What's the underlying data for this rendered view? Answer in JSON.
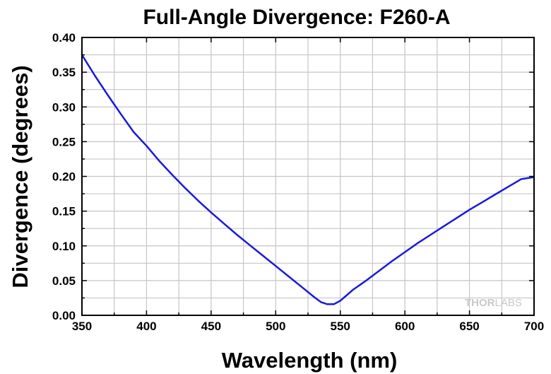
{
  "chart_data": {
    "type": "line",
    "title": "Full-Angle Divergence: F260-A",
    "xlabel": "Wavelength (nm)",
    "ylabel": "Divergence (degrees)",
    "xlim": [
      350,
      700
    ],
    "ylim": [
      0,
      0.4
    ],
    "xticks": [
      "350",
      "400",
      "450",
      "500",
      "550",
      "600",
      "650",
      "700"
    ],
    "yticks": [
      "0.00",
      "0.05",
      "0.10",
      "0.15",
      "0.20",
      "0.25",
      "0.30",
      "0.35",
      "0.40"
    ],
    "grid": true,
    "series": [
      {
        "color": "#1a1adb",
        "x": [
          350,
          360,
          370,
          380,
          390,
          400,
          410,
          420,
          430,
          440,
          450,
          460,
          470,
          480,
          490,
          500,
          510,
          520,
          530,
          535,
          540,
          545,
          550,
          555,
          560,
          570,
          580,
          590,
          600,
          610,
          620,
          630,
          640,
          650,
          660,
          670,
          680,
          690,
          700
        ],
        "y": [
          0.375,
          0.345,
          0.317,
          0.29,
          0.264,
          0.244,
          0.222,
          0.202,
          0.183,
          0.165,
          0.148,
          0.132,
          0.116,
          0.101,
          0.086,
          0.071,
          0.056,
          0.041,
          0.026,
          0.019,
          0.016,
          0.016,
          0.021,
          0.029,
          0.037,
          0.05,
          0.064,
          0.078,
          0.091,
          0.104,
          0.116,
          0.128,
          0.14,
          0.152,
          0.163,
          0.174,
          0.185,
          0.196,
          0.199
        ]
      }
    ]
  },
  "watermark": {
    "part1": "THOR",
    "part2": "LABS"
  }
}
